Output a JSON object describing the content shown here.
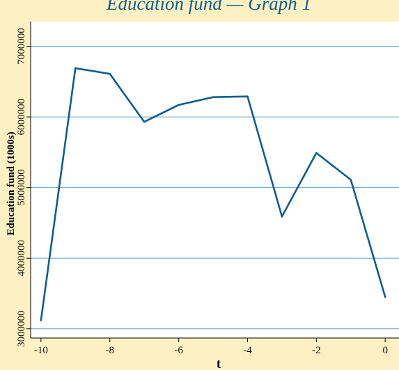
{
  "chart_data": {
    "type": "line",
    "title": "Education fund — Graph 1",
    "xlabel": "t",
    "ylabel": "Education fund (1000s)",
    "x": [
      -10,
      -9,
      -8,
      -7,
      -6,
      -5,
      -4,
      -3,
      -2,
      -1,
      0
    ],
    "series": [
      {
        "values": [
          3120000,
          6690000,
          6610000,
          5930000,
          6170000,
          6280000,
          6290000,
          4590000,
          5490000,
          5110000,
          3450000
        ]
      }
    ],
    "xticks": [
      -10,
      -8,
      -6,
      -4,
      -2,
      0
    ],
    "yticks": [
      3000000,
      4000000,
      5000000,
      6000000,
      7000000
    ],
    "xtick_labels": [
      "-10",
      "-8",
      "-6",
      "-4",
      "-2",
      "0"
    ],
    "ytick_labels": [
      "3000000",
      "4000000",
      "5000000",
      "6000000",
      "7000000"
    ],
    "xlim": [
      -10.3,
      0.4
    ],
    "ylim": [
      2870000,
      7350000
    ],
    "grid": "horizontal",
    "colors": {
      "background": "#fdf0c2",
      "plot_background": "#ffffff",
      "line": "#0b5e8f",
      "grid": "#6a9fc6",
      "title": "#0b5e8f"
    }
  }
}
